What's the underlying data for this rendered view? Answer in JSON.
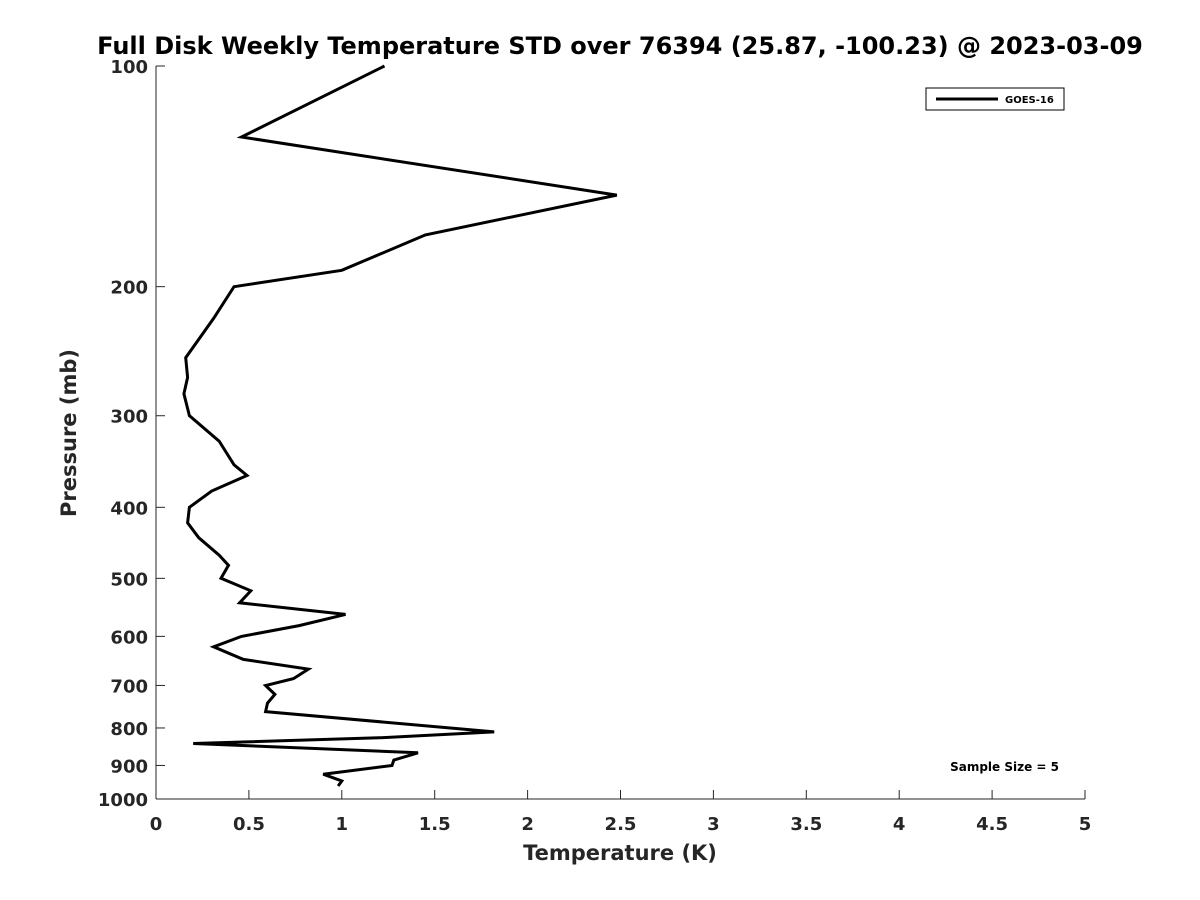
{
  "chart_data": {
    "type": "line",
    "title": "Full Disk Weekly Temperature STD over 76394 (25.87, -100.23) @ 2023-03-09",
    "xlabel": "Temperature (K)",
    "ylabel": "Pressure (mb)",
    "xlim": [
      0,
      5
    ],
    "ylim": [
      100,
      1000
    ],
    "y_scale": "log",
    "y_reversed": true,
    "x_ticks": [
      "0",
      "0.5",
      "1",
      "1.5",
      "2",
      "2.5",
      "3",
      "3.5",
      "4",
      "4.5",
      "5"
    ],
    "y_ticks": [
      "100",
      "200",
      "300",
      "400",
      "500",
      "600",
      "700",
      "800",
      "900",
      "1000"
    ],
    "grid": false,
    "legend_position": "top-right",
    "annotation": "Sample Size = 5",
    "series": [
      {
        "name": "GOES-16",
        "color": "#000000",
        "points": [
          [
            1.23,
            100
          ],
          [
            0.46,
            125
          ],
          [
            2.48,
            150
          ],
          [
            1.45,
            170
          ],
          [
            1.0,
            190
          ],
          [
            0.42,
            200
          ],
          [
            0.31,
            221
          ],
          [
            0.16,
            250
          ],
          [
            0.17,
            266
          ],
          [
            0.15,
            280
          ],
          [
            0.18,
            300
          ],
          [
            0.34,
            325
          ],
          [
            0.42,
            350
          ],
          [
            0.49,
            362
          ],
          [
            0.3,
            380
          ],
          [
            0.18,
            400
          ],
          [
            0.17,
            420
          ],
          [
            0.23,
            440
          ],
          [
            0.34,
            465
          ],
          [
            0.39,
            480
          ],
          [
            0.35,
            500
          ],
          [
            0.51,
            520
          ],
          [
            0.45,
            540
          ],
          [
            1.02,
            560
          ],
          [
            0.77,
            580
          ],
          [
            0.46,
            600
          ],
          [
            0.31,
            620
          ],
          [
            0.47,
            645
          ],
          [
            0.82,
            665
          ],
          [
            0.74,
            685
          ],
          [
            0.59,
            700
          ],
          [
            0.64,
            720
          ],
          [
            0.6,
            740
          ],
          [
            0.59,
            760
          ],
          [
            1.82,
            810
          ],
          [
            1.2,
            825
          ],
          [
            0.2,
            840
          ],
          [
            1.41,
            865
          ],
          [
            1.28,
            885
          ],
          [
            1.27,
            900
          ],
          [
            0.9,
            925
          ],
          [
            1.0,
            945
          ],
          [
            0.98,
            960
          ]
        ]
      }
    ]
  }
}
